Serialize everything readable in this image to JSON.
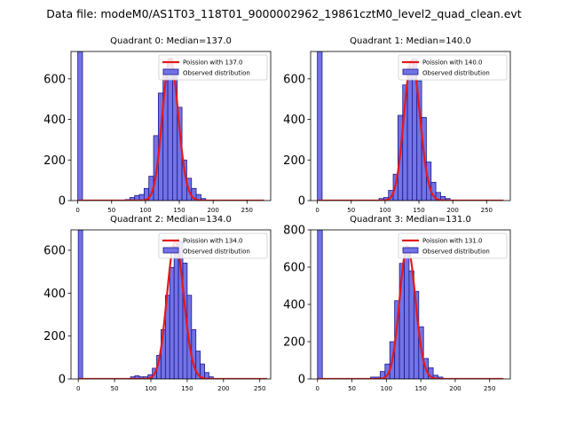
{
  "figure_title": "Data file: modeM0/AS1T03_118T01_9000002962_19861cztM0_level2_quad_clean.evt",
  "chart_data": [
    {
      "type": "bar",
      "title": "Quadrant 0: Median=137.0",
      "xlim": [
        -10,
        285
      ],
      "ylim": [
        0,
        735
      ],
      "xticks": [
        0,
        50,
        100,
        150,
        200,
        250
      ],
      "yticks": [
        0,
        200,
        400,
        600
      ],
      "bin_width": 7,
      "bins_left": [
        0,
        70,
        77,
        84,
        91,
        98,
        105,
        112,
        119,
        126,
        133,
        140,
        147,
        154,
        161,
        168,
        175,
        182
      ],
      "bins_values": [
        735,
        5,
        15,
        25,
        30,
        60,
        120,
        320,
        530,
        650,
        700,
        620,
        460,
        200,
        110,
        60,
        30,
        10
      ],
      "poisson_mean": 137.0,
      "poisson_peak": 700,
      "poisson_range": [
        0,
        275
      ],
      "legend": [
        "Poission with 137.0",
        "Observed distribution"
      ]
    },
    {
      "type": "bar",
      "title": "Quadrant 1: Median=140.0",
      "xlim": [
        -10,
        285
      ],
      "ylim": [
        0,
        735
      ],
      "xticks": [
        0,
        50,
        100,
        150,
        200,
        250
      ],
      "yticks": [
        0,
        200,
        400,
        600
      ],
      "bin_width": 7,
      "bins_left": [
        0,
        91,
        98,
        105,
        112,
        119,
        126,
        133,
        140,
        147,
        154,
        161,
        168,
        175,
        182,
        189
      ],
      "bins_values": [
        735,
        10,
        15,
        50,
        130,
        420,
        570,
        660,
        700,
        590,
        410,
        190,
        90,
        40,
        20,
        10
      ],
      "poisson_mean": 140.0,
      "poisson_peak": 690,
      "poisson_range": [
        0,
        275
      ],
      "legend": [
        "Poission with 140.0",
        "Observed distribution"
      ]
    },
    {
      "type": "bar",
      "title": "Quadrant 2: Median=134.0",
      "xlim": [
        -10,
        265
      ],
      "ylim": [
        0,
        695
      ],
      "xticks": [
        0,
        50,
        100,
        150,
        200,
        250
      ],
      "yticks": [
        0,
        200,
        400,
        600
      ],
      "bin_width": 6,
      "bins_left": [
        0,
        72,
        78,
        84,
        90,
        96,
        102,
        108,
        114,
        120,
        126,
        132,
        138,
        144,
        150,
        156,
        162,
        168,
        174,
        180
      ],
      "bins_values": [
        695,
        10,
        15,
        10,
        10,
        20,
        50,
        110,
        230,
        390,
        520,
        620,
        640,
        540,
        390,
        230,
        130,
        70,
        30,
        10
      ],
      "poisson_mean": 134.0,
      "poisson_peak": 640,
      "poisson_range": [
        0,
        260
      ],
      "legend": [
        "Poission with 134.0",
        "Observed distribution"
      ]
    },
    {
      "type": "bar",
      "title": "Quadrant 3: Median=131.0",
      "xlim": [
        -10,
        280
      ],
      "ylim": [
        0,
        800
      ],
      "xticks": [
        0,
        50,
        100,
        150,
        200,
        250
      ],
      "yticks": [
        0,
        200,
        400,
        600,
        800
      ],
      "bin_width": 7,
      "bins_left": [
        0,
        77,
        84,
        91,
        98,
        105,
        112,
        119,
        126,
        133,
        140,
        147,
        154,
        161,
        168,
        175
      ],
      "bins_values": [
        800,
        10,
        10,
        40,
        80,
        200,
        420,
        620,
        680,
        580,
        470,
        280,
        110,
        60,
        20,
        10
      ],
      "poisson_mean": 131.0,
      "poisson_peak": 710,
      "poisson_range": [
        0,
        270
      ],
      "legend": [
        "Poission with 131.0",
        "Observed distribution"
      ]
    }
  ],
  "colors": {
    "bar_fill": "#7373e6",
    "bar_edge": "#1a1a8c",
    "fit_line": "#e31a1c",
    "axis": "#000000"
  }
}
